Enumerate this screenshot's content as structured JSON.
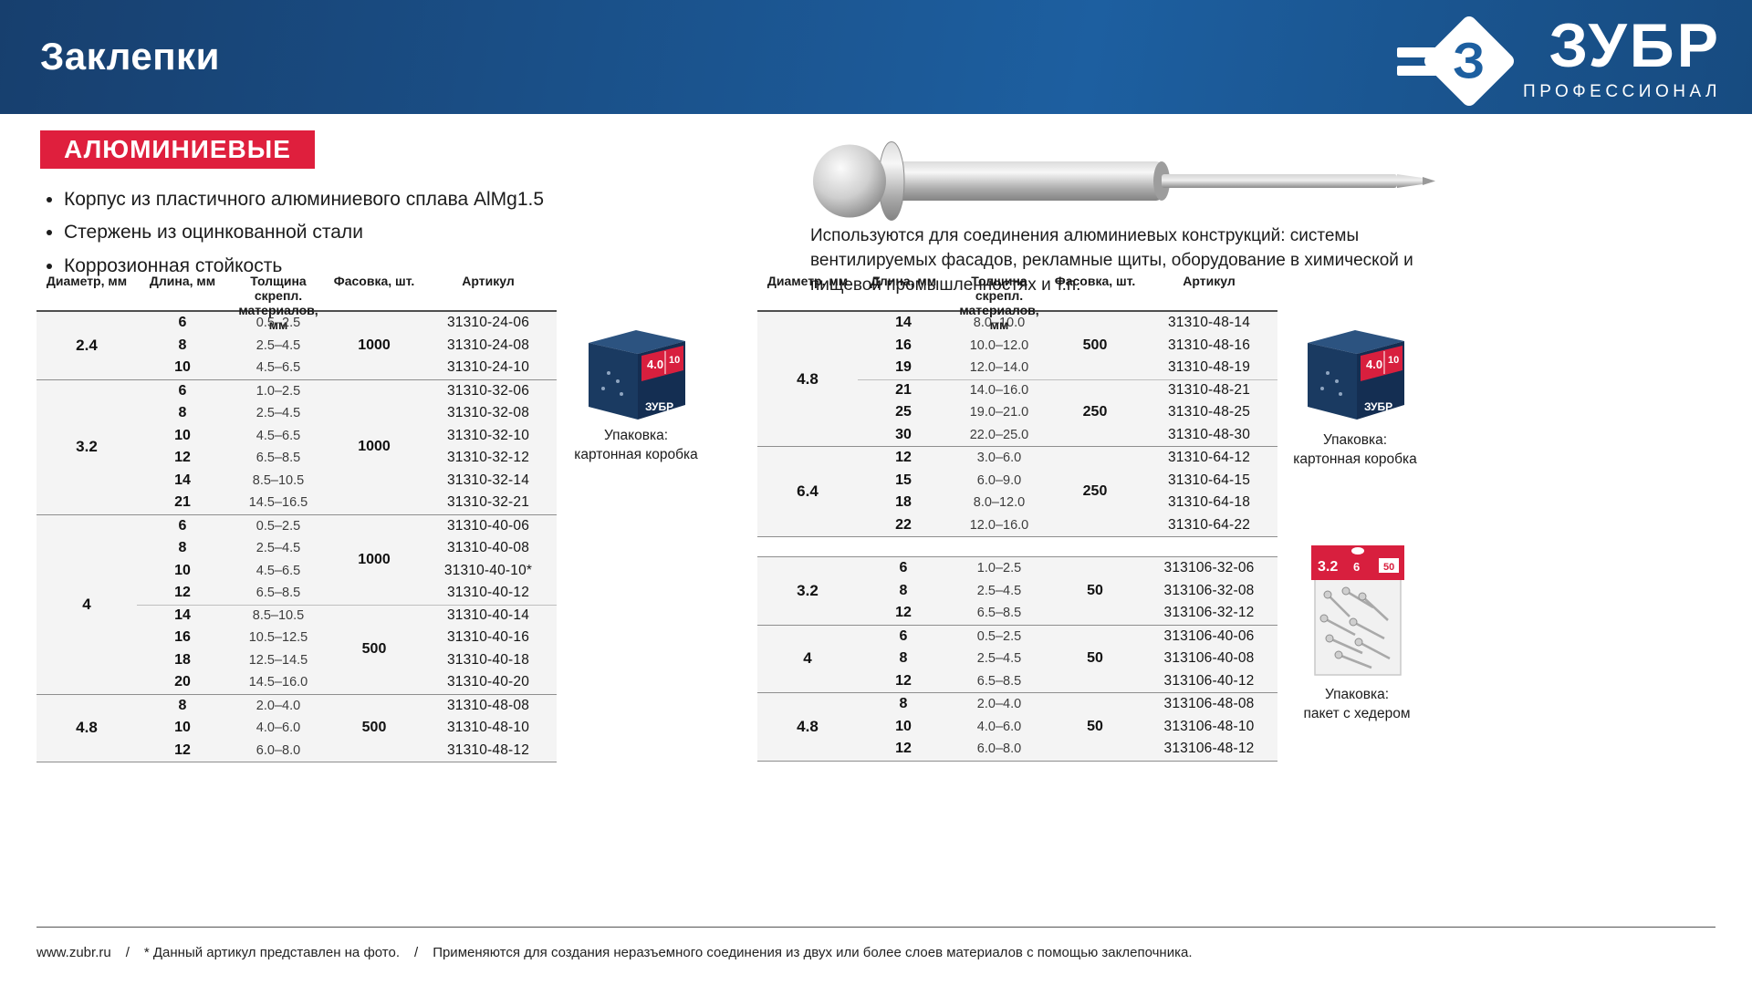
{
  "header": {
    "title": "Заклепки",
    "brand": "ЗУБР",
    "brand_letter": "З",
    "brand_sub": "ПРОФЕССИОНАЛ"
  },
  "badge": "АЛЮМИНИЕВЫЕ",
  "features": [
    "Корпус из пластичного алюминиевого сплава AlMg1.5",
    "Стержень из оцинкованной стали",
    "Коррозионная стойкость"
  ],
  "usage_text": "Используются для соединения алюминиевых конструкций: системы вентилируемых фасадов, рекламные щиты, оборудование в химической и пищевой промышленностях и т.п.",
  "colors": {
    "header_blue_dark": "#173f6e",
    "header_blue_light": "#1d5fa0",
    "accent_red": "#df1f3d",
    "table_bg": "#f4f4f4"
  },
  "tables": {
    "columns": [
      "Диаметр, мм",
      "Длина, мм",
      "Толщина скрепл.\nматериалов, мм",
      "Фасовка, шт.",
      "Артикул"
    ],
    "left": {
      "groups": [
        {
          "diameter": "2.4",
          "rows": [
            [
              "6",
              "0.5–2.5",
              "31310-24-06"
            ],
            [
              "8",
              "2.5–4.5",
              "31310-24-08"
            ],
            [
              "10",
              "4.5–6.5",
              "31310-24-10"
            ]
          ],
          "packs": [
            {
              "qty": "1000",
              "span": 3
            }
          ]
        },
        {
          "diameter": "3.2",
          "rows": [
            [
              "6",
              "1.0–2.5",
              "31310-32-06"
            ],
            [
              "8",
              "2.5–4.5",
              "31310-32-08"
            ],
            [
              "10",
              "4.5–6.5",
              "31310-32-10"
            ],
            [
              "12",
              "6.5–8.5",
              "31310-32-12"
            ],
            [
              "14",
              "8.5–10.5",
              "31310-32-14"
            ],
            [
              "21",
              "14.5–16.5",
              "31310-32-21"
            ]
          ],
          "packs": [
            {
              "qty": "1000",
              "span": 6
            }
          ]
        },
        {
          "diameter": "4",
          "rows": [
            [
              "6",
              "0.5–2.5",
              "31310-40-06"
            ],
            [
              "8",
              "2.5–4.5",
              "31310-40-08"
            ],
            [
              "10",
              "4.5–6.5",
              "31310-40-10*"
            ],
            [
              "12",
              "6.5–8.5",
              "31310-40-12"
            ],
            [
              "14",
              "8.5–10.5",
              "31310-40-14"
            ],
            [
              "16",
              "10.5–12.5",
              "31310-40-16"
            ],
            [
              "18",
              "12.5–14.5",
              "31310-40-18"
            ],
            [
              "20",
              "14.5–16.0",
              "31310-40-20"
            ]
          ],
          "packs": [
            {
              "qty": "1000",
              "span": 4
            },
            {
              "qty": "500",
              "span": 4
            }
          ],
          "split_after": 4
        },
        {
          "diameter": "4.8",
          "rows": [
            [
              "8",
              "2.0–4.0",
              "31310-48-08"
            ],
            [
              "10",
              "4.0–6.0",
              "31310-48-10"
            ],
            [
              "12",
              "6.0–8.0",
              "31310-48-12"
            ]
          ],
          "packs": [
            {
              "qty": "500",
              "span": 3
            }
          ]
        }
      ]
    },
    "right_top": {
      "groups": [
        {
          "diameter": "4.8",
          "rows": [
            [
              "14",
              "8.0–10.0",
              "31310-48-14"
            ],
            [
              "16",
              "10.0–12.0",
              "31310-48-16"
            ],
            [
              "19",
              "12.0–14.0",
              "31310-48-19"
            ],
            [
              "21",
              "14.0–16.0",
              "31310-48-21"
            ],
            [
              "25",
              "19.0–21.0",
              "31310-48-25"
            ],
            [
              "30",
              "22.0–25.0",
              "31310-48-30"
            ]
          ],
          "packs": [
            {
              "qty": "500",
              "span": 3
            },
            {
              "qty": "250",
              "span": 3
            }
          ],
          "split_after": 3
        },
        {
          "diameter": "6.4",
          "rows": [
            [
              "12",
              "3.0–6.0",
              "31310-64-12"
            ],
            [
              "15",
              "6.0–9.0",
              "31310-64-15"
            ],
            [
              "18",
              "8.0–12.0",
              "31310-64-18"
            ],
            [
              "22",
              "12.0–16.0",
              "31310-64-22"
            ]
          ],
          "packs": [
            {
              "qty": "250",
              "span": 4
            }
          ]
        }
      ]
    },
    "right_bottom": {
      "groups": [
        {
          "diameter": "3.2",
          "rows": [
            [
              "6",
              "1.0–2.5",
              "313106-32-06"
            ],
            [
              "8",
              "2.5–4.5",
              "313106-32-08"
            ],
            [
              "12",
              "6.5–8.5",
              "313106-32-12"
            ]
          ],
          "packs": [
            {
              "qty": "50",
              "span": 3
            }
          ]
        },
        {
          "diameter": "4",
          "rows": [
            [
              "6",
              "0.5–2.5",
              "313106-40-06"
            ],
            [
              "8",
              "2.5–4.5",
              "313106-40-08"
            ],
            [
              "12",
              "6.5–8.5",
              "313106-40-12"
            ]
          ],
          "packs": [
            {
              "qty": "50",
              "span": 3
            }
          ]
        },
        {
          "diameter": "4.8",
          "rows": [
            [
              "8",
              "2.0–4.0",
              "313106-48-08"
            ],
            [
              "10",
              "4.0–6.0",
              "313106-48-10"
            ],
            [
              "12",
              "6.0–8.0",
              "313106-48-12"
            ]
          ],
          "packs": [
            {
              "qty": "50",
              "span": 3
            }
          ]
        }
      ]
    }
  },
  "packaging": {
    "caption_box": "Упаковка:\nкартонная коробка",
    "caption_bag": "Упаковка:\nпакет с хедером",
    "box_label": {
      "size": "4.0",
      "len": "10",
      "brand": "ЗУБР"
    },
    "bag_label": {
      "size": "3.2",
      "len": "6",
      "qty": "50"
    }
  },
  "footer": {
    "url": "www.zubr.ru",
    "separator": "/",
    "note_photo": "* Данный артикул представлен на фото.",
    "note_usage": "Применяются для создания неразъемного соединения из двух или более слоев материалов с помощью заклепочника."
  }
}
